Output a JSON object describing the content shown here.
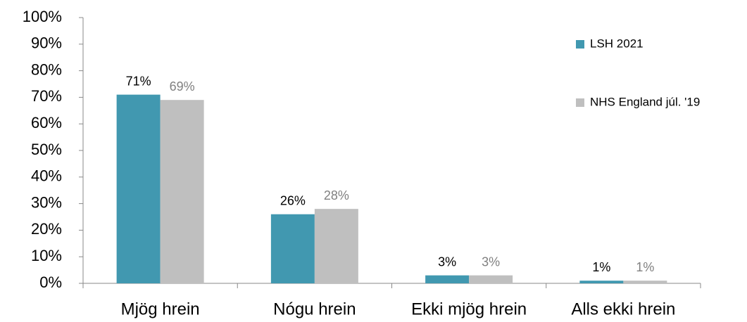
{
  "chart_data": {
    "type": "bar",
    "categories": [
      "Mjög hrein",
      "Nógu hrein",
      "Ekki mjög hrein",
      "Alls ekki hrein"
    ],
    "series": [
      {
        "name": "LSH 2021",
        "color": "#4198b0",
        "values": [
          71,
          26,
          3,
          1
        ],
        "value_labels": [
          "71%",
          "26%",
          "3%",
          "1%"
        ],
        "label_color": "#000000"
      },
      {
        "name": "NHS England júl. '19",
        "color": "#bfbfbf",
        "values": [
          69,
          28,
          3,
          1
        ],
        "value_labels": [
          "69%",
          "28%",
          "3%",
          "1%"
        ],
        "label_color": "#808080"
      }
    ],
    "ylim": [
      0,
      100
    ],
    "yticks": [
      {
        "value": 0,
        "label": "0%"
      },
      {
        "value": 10,
        "label": "10%"
      },
      {
        "value": 20,
        "label": "20%"
      },
      {
        "value": 30,
        "label": "30%"
      },
      {
        "value": 40,
        "label": "40%"
      },
      {
        "value": 50,
        "label": "50%"
      },
      {
        "value": 60,
        "label": "60%"
      },
      {
        "value": 70,
        "label": "70%"
      },
      {
        "value": 80,
        "label": "80%"
      },
      {
        "value": 90,
        "label": "90%"
      },
      {
        "value": 100,
        "label": "100%"
      }
    ],
    "legend": "right"
  }
}
